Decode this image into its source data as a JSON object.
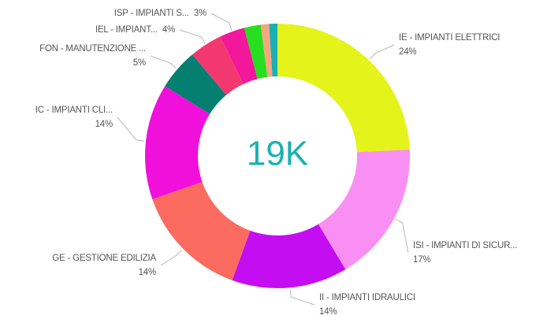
{
  "chart_data": {
    "type": "donut",
    "center_label": "19K",
    "categories": [
      "IE - IMPIANTI ELETTRICI",
      "ISI - IMPIANTI DI SICUR...",
      "II - IMPIANTI IDRAULICI",
      "GE - GESTIONE EDILIZIA",
      "IC - IMPIANTI CLI...",
      "FON - MANUTENZIONE ...",
      "IEL - IMPIANT...",
      "ISP - IMPIANTI S...",
      null,
      null,
      null
    ],
    "values": [
      24,
      17,
      14,
      14,
      14,
      5,
      4,
      3,
      2,
      1,
      1
    ],
    "value_labels": [
      "24%",
      "17%",
      "14%",
      "14%",
      "14%",
      "5%",
      "4%",
      "3%",
      null,
      null,
      null
    ],
    "colors": [
      "#e4f41a",
      "#f98ff2",
      "#c50df2",
      "#fb6b5f",
      "#f10fdc",
      "#047f70",
      "#f2386e",
      "#f2179b",
      "#26df1f",
      "#f4a67f",
      "#1aafb3"
    ]
  }
}
